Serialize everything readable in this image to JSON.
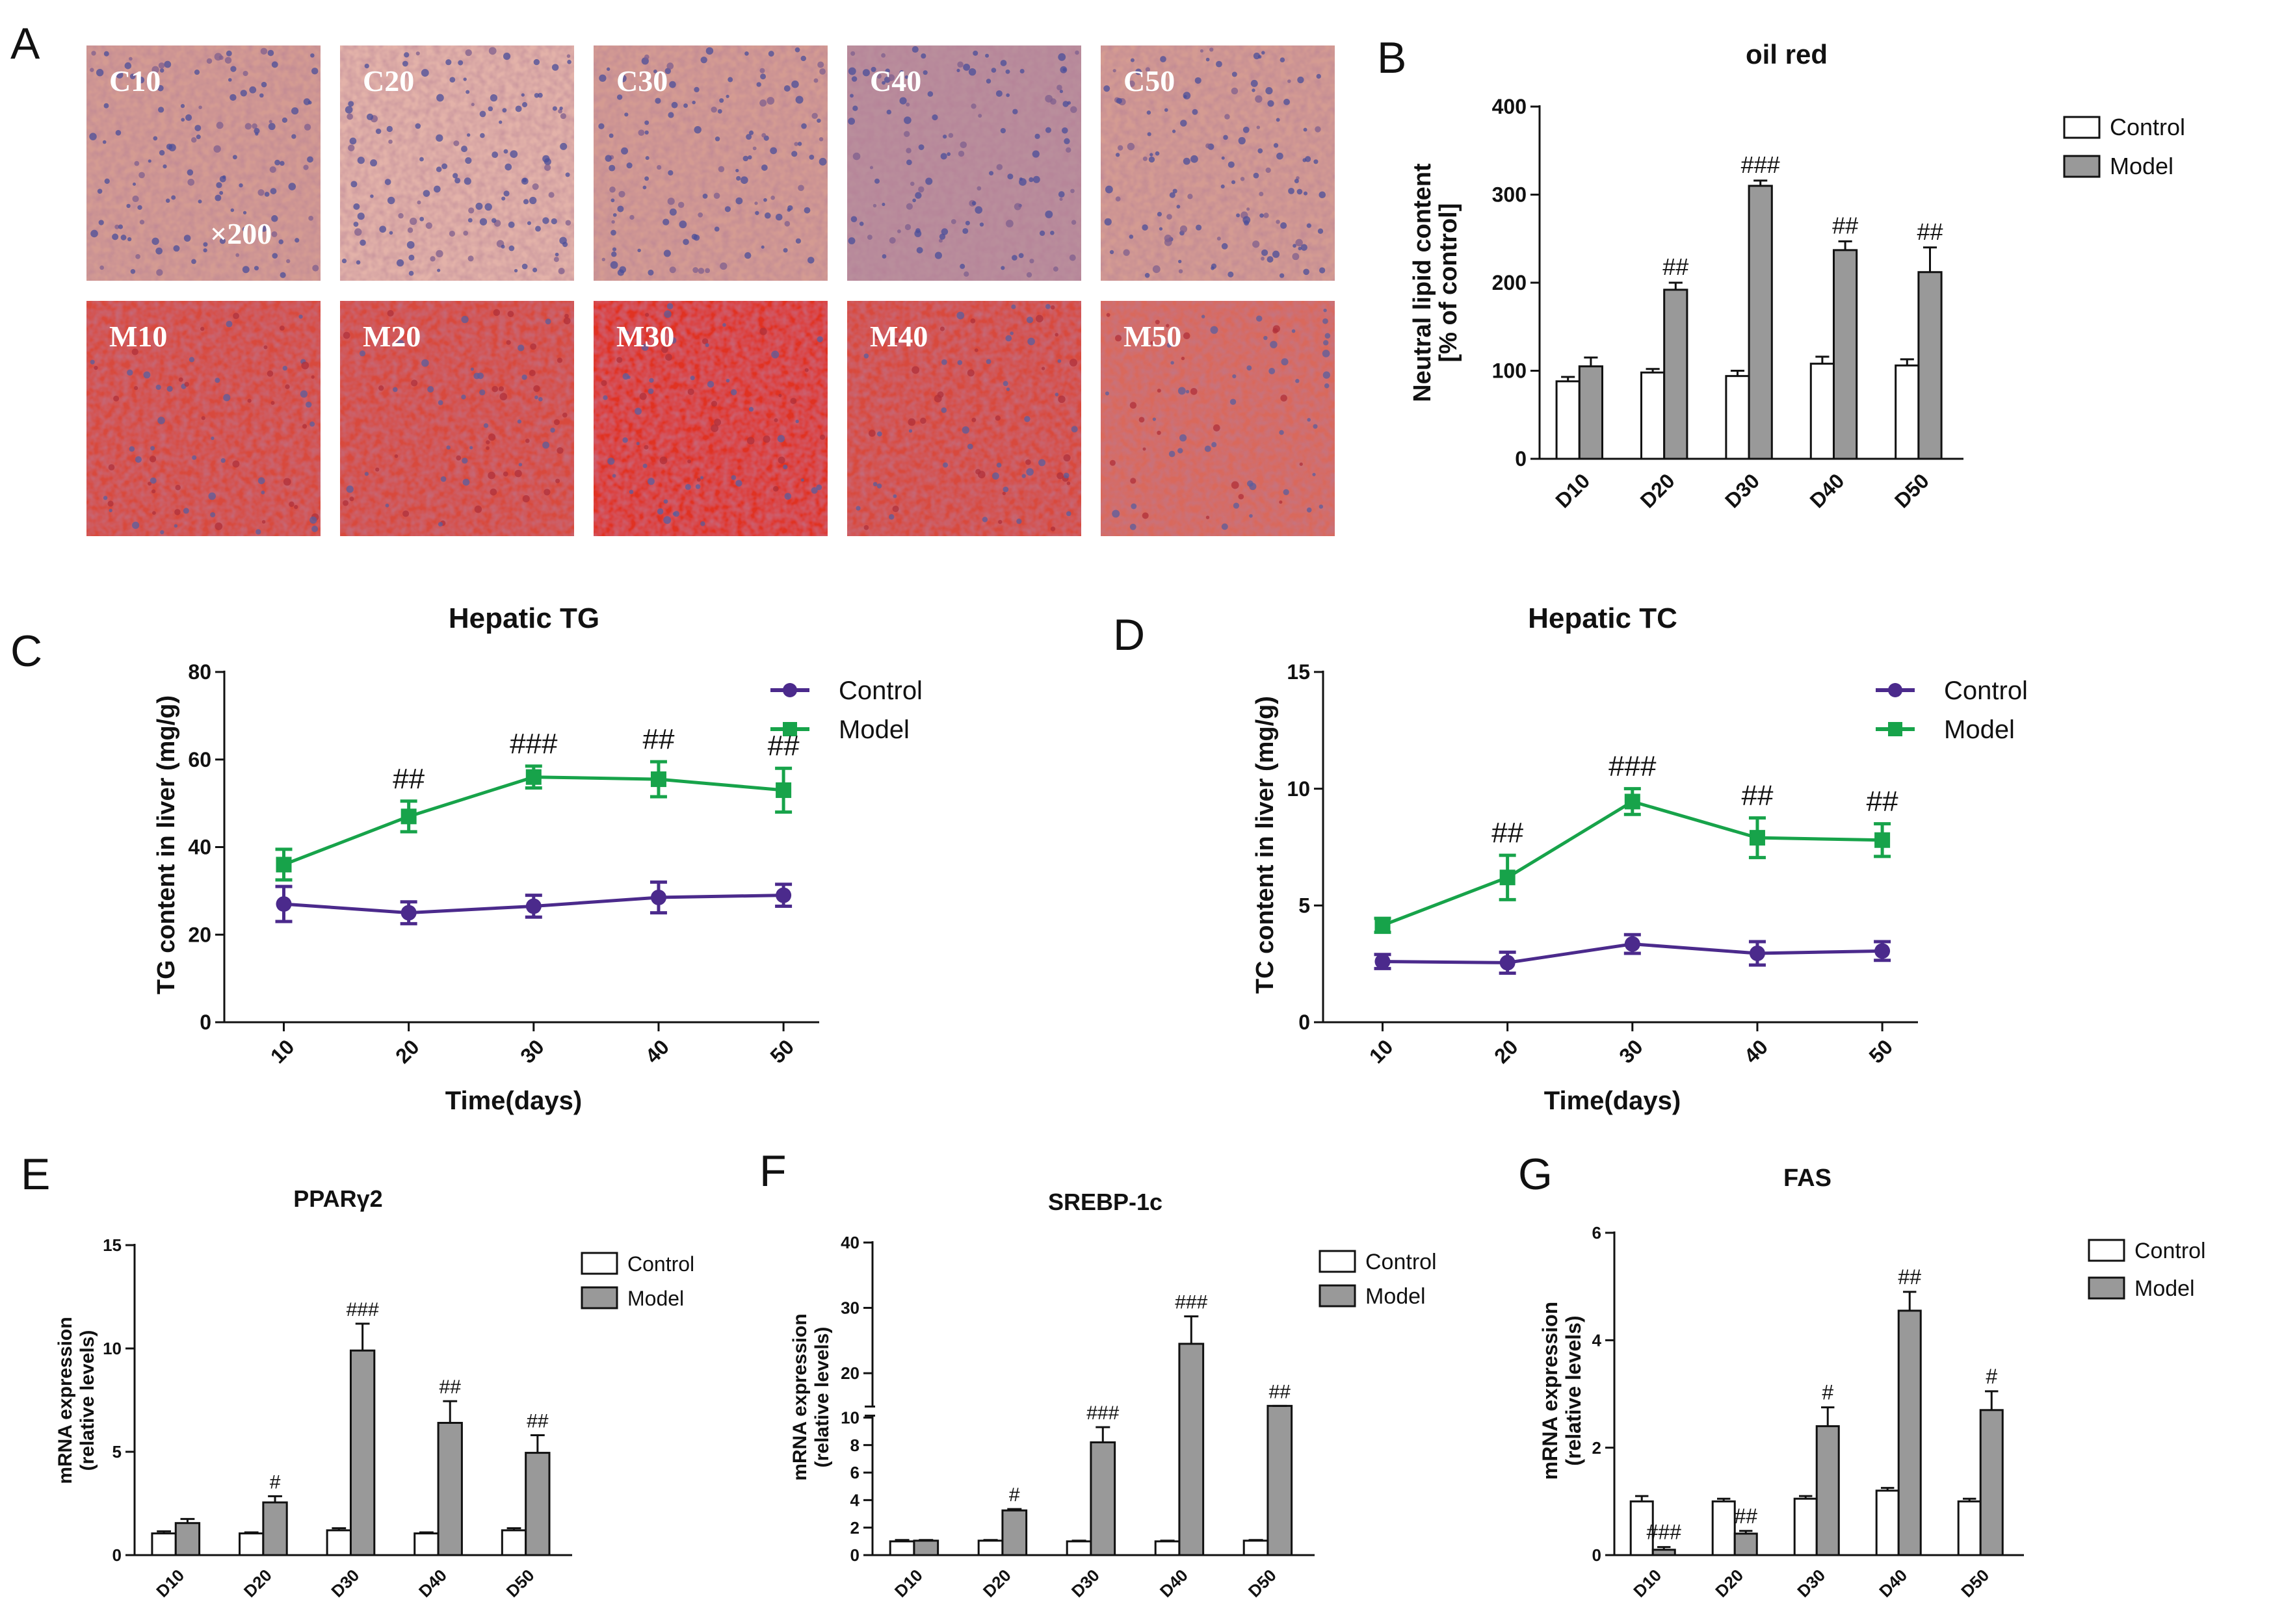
{
  "colors": {
    "control_fill": "#ffffff",
    "model_fill": "#999999",
    "control_line": "#4b2a8c",
    "model_line": "#17a34a",
    "stain_control": [
      "#d9a39b",
      "#c98d8c",
      "#b68988"
    ],
    "stain_model": "#e0321e"
  },
  "panel_a": {
    "letter": "A",
    "magnification": "×200",
    "control_labels": [
      "C10",
      "C20",
      "C30",
      "C40",
      "C50"
    ],
    "model_labels": [
      "M10",
      "M20",
      "M30",
      "M40",
      "M50"
    ]
  },
  "chart_data": [
    {
      "panel": "B",
      "type": "bar",
      "title": "oil red",
      "ylabel": "Neutral lipid content\n[% of control]",
      "ylabel_lines": [
        "Neutral lipid content",
        "[% of control]"
      ],
      "xlabel": "",
      "categories": [
        "D10",
        "D20",
        "D30",
        "D40",
        "D50"
      ],
      "ylim": [
        0,
        400
      ],
      "yticks": [
        "0",
        "100",
        "200",
        "300",
        "400"
      ],
      "series": [
        {
          "name": "Control",
          "values": [
            88,
            98,
            94,
            108,
            106
          ],
          "errors": [
            5,
            4,
            6,
            8,
            7
          ]
        },
        {
          "name": "Model",
          "values": [
            105,
            192,
            310,
            237,
            212
          ],
          "errors": [
            10,
            8,
            6,
            10,
            28
          ]
        }
      ],
      "annotations": [
        "",
        "##",
        "###",
        "##",
        "##"
      ],
      "legend": [
        "Control",
        "Model"
      ]
    },
    {
      "panel": "C",
      "type": "line",
      "title": "Hepatic TG",
      "ylabel": "TG content in liver (mg/g)",
      "xlabel": "Time(days)",
      "x": [
        10,
        20,
        30,
        40,
        50
      ],
      "xticks": [
        "10",
        "20",
        "30",
        "40",
        "50"
      ],
      "ylim": [
        0,
        80
      ],
      "yticks": [
        "0",
        "20",
        "40",
        "60",
        "80"
      ],
      "series": [
        {
          "name": "Control",
          "values": [
            27,
            25,
            26.5,
            28.5,
            29
          ],
          "errors": [
            4,
            2.5,
            2.5,
            3.5,
            2.5
          ]
        },
        {
          "name": "Model",
          "values": [
            36,
            47,
            56,
            55.5,
            53
          ],
          "errors": [
            3.5,
            3.5,
            2.5,
            4,
            5
          ]
        }
      ],
      "annotations": [
        "",
        "##",
        "###",
        "##",
        "##"
      ],
      "legend": [
        "Control",
        "Model"
      ]
    },
    {
      "panel": "D",
      "type": "line",
      "title": "Hepatic TC",
      "ylabel": "TC content in liver (mg/g)",
      "xlabel": "Time(days)",
      "x": [
        10,
        20,
        30,
        40,
        50
      ],
      "xticks": [
        "10",
        "20",
        "30",
        "40",
        "50"
      ],
      "ylim": [
        0,
        15
      ],
      "yticks": [
        "0",
        "5",
        "10",
        "15"
      ],
      "series": [
        {
          "name": "Control",
          "values": [
            2.6,
            2.55,
            3.35,
            2.95,
            3.05
          ],
          "errors": [
            0.3,
            0.45,
            0.4,
            0.5,
            0.4
          ]
        },
        {
          "name": "Model",
          "values": [
            4.15,
            6.2,
            9.45,
            7.9,
            7.8
          ],
          "errors": [
            0.3,
            0.95,
            0.55,
            0.85,
            0.7
          ]
        }
      ],
      "annotations": [
        "",
        "##",
        "###",
        "##",
        "##"
      ],
      "legend": [
        "Control",
        "Model"
      ]
    },
    {
      "panel": "E",
      "type": "bar",
      "title": "PPARγ2",
      "ylabel": "mRNA expression\n(relative levels)",
      "ylabel_lines": [
        "mRNA expression",
        "(relative levels)"
      ],
      "xlabel": "",
      "categories": [
        "D10",
        "D20",
        "D30",
        "D40",
        "D50"
      ],
      "ylim": [
        0,
        15
      ],
      "yticks": [
        "0",
        "5",
        "10",
        "15"
      ],
      "series": [
        {
          "name": "Control",
          "values": [
            1.05,
            1.05,
            1.2,
            1.05,
            1.2
          ],
          "errors": [
            0.1,
            0.05,
            0.1,
            0.05,
            0.1
          ]
        },
        {
          "name": "Model",
          "values": [
            1.55,
            2.55,
            9.9,
            6.4,
            4.95
          ],
          "errors": [
            0.2,
            0.3,
            1.3,
            1.05,
            0.85
          ]
        }
      ],
      "annotations": [
        "",
        "#",
        "###",
        "##",
        "##"
      ],
      "legend": [
        "Control",
        "Model"
      ]
    },
    {
      "panel": "F",
      "type": "bar",
      "title": "SREBP-1c",
      "ylabel": "mRNA expression\n(relative levels)",
      "ylabel_lines": [
        "mRNA expression",
        "(relative levels)"
      ],
      "xlabel": "",
      "categories": [
        "D10",
        "D20",
        "D30",
        "D40",
        "D50"
      ],
      "ylim": [
        0,
        40
      ],
      "axis_break": [
        10,
        15
      ],
      "yticks": [
        "0",
        "2",
        "4",
        "6",
        "8",
        "10",
        "20",
        "30",
        "40"
      ],
      "series": [
        {
          "name": "Control",
          "values": [
            1.0,
            1.05,
            1.0,
            1.0,
            1.05
          ],
          "errors": [
            0.1,
            0.05,
            0.05,
            0.05,
            0.05
          ]
        },
        {
          "name": "Model",
          "values": [
            1.05,
            3.25,
            8.2,
            24.5,
            10.6
          ],
          "errors": [
            0.05,
            0.1,
            1.1,
            4.2,
            0.9
          ]
        }
      ],
      "annotations": [
        "",
        "#",
        "###",
        "###",
        "##"
      ],
      "legend": [
        "Control",
        "Model"
      ]
    },
    {
      "panel": "G",
      "type": "bar",
      "title": "FAS",
      "ylabel": "mRNA expression\n(relative levels)",
      "ylabel_lines": [
        "mRNA expression",
        "(relative levels)"
      ],
      "xlabel": "",
      "categories": [
        "D10",
        "D20",
        "D30",
        "D40",
        "D50"
      ],
      "ylim": [
        0,
        6
      ],
      "yticks": [
        "0",
        "2",
        "4",
        "6"
      ],
      "series": [
        {
          "name": "Control",
          "values": [
            1.0,
            1.0,
            1.05,
            1.2,
            1.0
          ],
          "errors": [
            0.1,
            0.05,
            0.05,
            0.05,
            0.05
          ]
        },
        {
          "name": "Model",
          "values": [
            0.1,
            0.4,
            2.4,
            4.55,
            2.7
          ],
          "errors": [
            0.05,
            0.05,
            0.35,
            0.35,
            0.35
          ]
        }
      ],
      "annotations": [
        "###",
        "##",
        "#",
        "##",
        "#"
      ],
      "legend": [
        "Control",
        "Model"
      ]
    }
  ]
}
